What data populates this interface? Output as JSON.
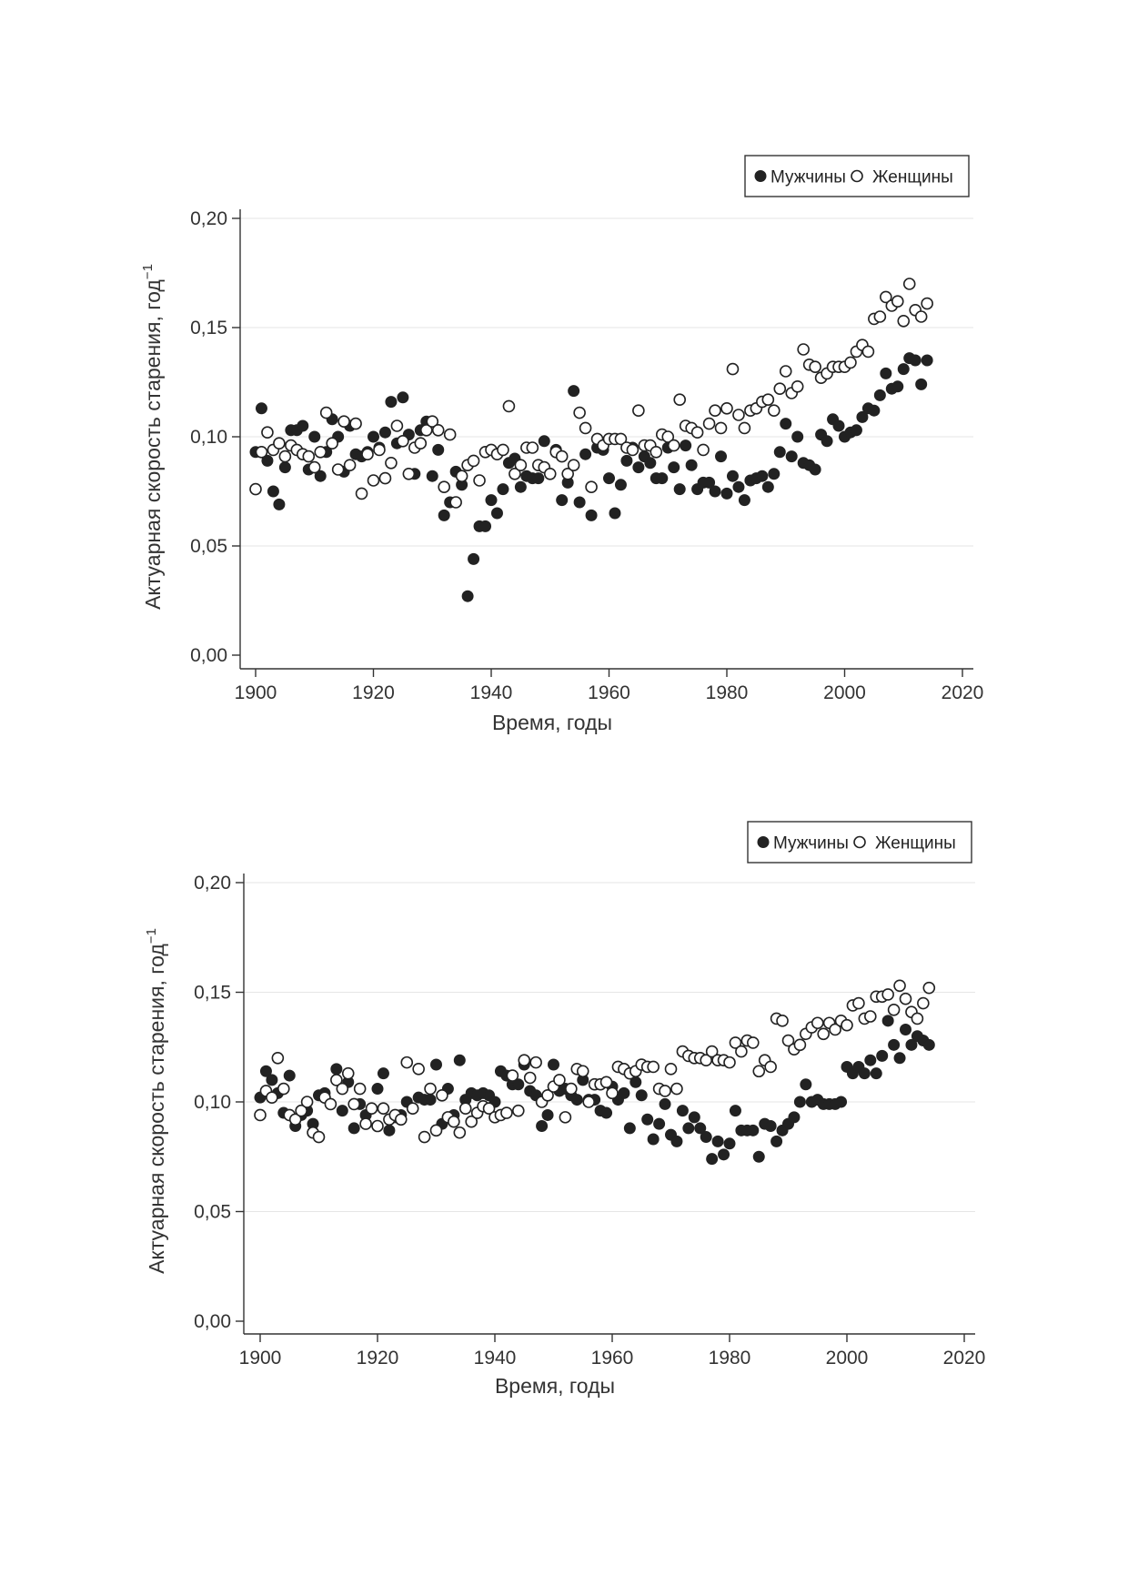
{
  "chart_data": [
    {
      "type": "scatter",
      "title": "",
      "xlabel": "Время, годы",
      "ylabel": "Актуарная скорость старения, год",
      "ylabel_superscript": "−1",
      "xlim": [
        1900,
        2020
      ],
      "ylim": [
        0.0,
        0.2
      ],
      "x_ticks": [
        1900,
        1920,
        1940,
        1960,
        1980,
        2000,
        2020
      ],
      "y_ticks": [
        0.0,
        0.05,
        0.1,
        0.15,
        0.2
      ],
      "y_tick_labels": [
        "0,00",
        "0,05",
        "0,10",
        "0,15",
        "0,20"
      ],
      "grid": "horizontal",
      "legend_position": "top-right",
      "series": [
        {
          "name": "Мужчины",
          "marker": "filled-circle",
          "color": "#222222",
          "x": [
            1900,
            1901,
            1902,
            1903,
            1904,
            1905,
            1906,
            1907,
            1908,
            1909,
            1910,
            1911,
            1912,
            1913,
            1914,
            1915,
            1916,
            1917,
            1918,
            1919,
            1920,
            1921,
            1922,
            1923,
            1924,
            1925,
            1926,
            1927,
            1928,
            1929,
            1930,
            1931,
            1932,
            1933,
            1934,
            1935,
            1936,
            1937,
            1938,
            1939,
            1940,
            1941,
            1942,
            1943,
            1944,
            1945,
            1946,
            1947,
            1948,
            1949,
            1950,
            1951,
            1952,
            1953,
            1954,
            1955,
            1956,
            1957,
            1958,
            1959,
            1960,
            1961,
            1962,
            1963,
            1964,
            1965,
            1966,
            1967,
            1968,
            1969,
            1970,
            1971,
            1972,
            1973,
            1974,
            1975,
            1976,
            1977,
            1978,
            1979,
            1980,
            1981,
            1982,
            1983,
            1984,
            1985,
            1986,
            1987,
            1988,
            1989,
            1990,
            1991,
            1992,
            1993,
            1994,
            1995,
            1996,
            1997,
            1998,
            1999,
            2000,
            2001,
            2002,
            2003,
            2004,
            2005,
            2006,
            2007,
            2008,
            2009,
            2010,
            2011,
            2012,
            2013,
            2014
          ],
          "y": [
            0.093,
            0.113,
            0.089,
            0.075,
            0.069,
            0.086,
            0.103,
            0.103,
            0.105,
            0.085,
            0.1,
            0.082,
            0.093,
            0.108,
            0.1,
            0.084,
            0.105,
            0.092,
            0.091,
            0.093,
            0.1,
            0.095,
            0.102,
            0.116,
            0.097,
            0.118,
            0.101,
            0.083,
            0.103,
            0.107,
            0.082,
            0.094,
            0.064,
            0.07,
            0.084,
            0.078,
            0.027,
            0.044,
            0.059,
            0.059,
            0.071,
            0.065,
            0.076,
            0.088,
            0.09,
            0.077,
            0.082,
            0.081,
            0.081,
            0.098,
            0.083,
            0.094,
            0.071,
            0.079,
            0.121,
            0.07,
            0.092,
            0.064,
            0.095,
            0.094,
            0.081,
            0.065,
            0.078,
            0.089,
            0.095,
            0.086,
            0.091,
            0.088,
            0.081,
            0.081,
            0.095,
            0.086,
            0.076,
            0.096,
            0.087,
            0.076,
            0.079,
            0.079,
            0.075,
            0.091,
            0.074,
            0.082,
            0.077,
            0.071,
            0.08,
            0.081,
            0.082,
            0.077,
            0.083,
            0.093,
            0.106,
            0.091,
            0.1,
            0.088,
            0.087,
            0.085,
            0.101,
            0.098,
            0.108,
            0.105,
            0.1,
            0.102,
            0.103,
            0.109,
            0.113,
            0.112,
            0.119,
            0.129,
            0.122,
            0.123,
            0.131,
            0.136,
            0.135,
            0.124,
            0.135
          ]
        },
        {
          "name": "Женщины",
          "marker": "open-circle",
          "color": "#222222",
          "x": [
            1900,
            1901,
            1902,
            1903,
            1904,
            1905,
            1906,
            1907,
            1908,
            1909,
            1910,
            1911,
            1912,
            1913,
            1914,
            1915,
            1916,
            1917,
            1918,
            1919,
            1920,
            1921,
            1922,
            1923,
            1924,
            1925,
            1926,
            1927,
            1928,
            1929,
            1930,
            1931,
            1932,
            1933,
            1934,
            1935,
            1936,
            1937,
            1938,
            1939,
            1940,
            1941,
            1942,
            1943,
            1944,
            1945,
            1946,
            1947,
            1948,
            1949,
            1950,
            1951,
            1952,
            1953,
            1954,
            1955,
            1956,
            1957,
            1958,
            1959,
            1960,
            1961,
            1962,
            1963,
            1964,
            1965,
            1966,
            1967,
            1968,
            1969,
            1970,
            1971,
            1972,
            1973,
            1974,
            1975,
            1976,
            1977,
            1978,
            1979,
            1980,
            1981,
            1982,
            1983,
            1984,
            1985,
            1986,
            1987,
            1988,
            1989,
            1990,
            1991,
            1992,
            1993,
            1994,
            1995,
            1996,
            1997,
            1998,
            1999,
            2000,
            2001,
            2002,
            2003,
            2004,
            2005,
            2006,
            2007,
            2008,
            2009,
            2010,
            2011,
            2012,
            2013,
            2014
          ],
          "y": [
            0.076,
            0.093,
            0.102,
            0.094,
            0.097,
            0.091,
            0.096,
            0.094,
            0.092,
            0.091,
            0.086,
            0.093,
            0.111,
            0.097,
            0.085,
            0.107,
            0.087,
            0.106,
            0.074,
            0.092,
            0.08,
            0.094,
            0.081,
            0.088,
            0.105,
            0.098,
            0.083,
            0.095,
            0.097,
            0.103,
            0.107,
            0.103,
            0.077,
            0.101,
            0.07,
            0.082,
            0.087,
            0.089,
            0.08,
            0.093,
            0.094,
            0.092,
            0.094,
            0.114,
            0.083,
            0.087,
            0.095,
            0.095,
            0.087,
            0.086,
            0.083,
            0.093,
            0.091,
            0.083,
            0.087,
            0.111,
            0.104,
            0.077,
            0.099,
            0.096,
            0.099,
            0.099,
            0.099,
            0.095,
            0.094,
            0.112,
            0.096,
            0.096,
            0.093,
            0.101,
            0.1,
            0.096,
            0.117,
            0.105,
            0.104,
            0.102,
            0.094,
            0.106,
            0.112,
            0.104,
            0.113,
            0.131,
            0.11,
            0.104,
            0.112,
            0.113,
            0.116,
            0.117,
            0.112,
            0.122,
            0.13,
            0.12,
            0.123,
            0.14,
            0.133,
            0.132,
            0.127,
            0.129,
            0.132,
            0.132,
            0.132,
            0.134,
            0.139,
            0.142,
            0.139,
            0.154,
            0.155,
            0.164,
            0.16,
            0.162,
            0.153,
            0.17,
            0.158,
            0.155,
            0.161
          ]
        }
      ]
    },
    {
      "type": "scatter",
      "title": "",
      "xlabel": "Время, годы",
      "ylabel": "Актуарная скорость старения, год",
      "ylabel_superscript": "−1",
      "xlim": [
        1900,
        2020
      ],
      "ylim": [
        0.0,
        0.2
      ],
      "x_ticks": [
        1900,
        1920,
        1940,
        1960,
        1980,
        2000,
        2020
      ],
      "y_ticks": [
        0.0,
        0.05,
        0.1,
        0.15,
        0.2
      ],
      "y_tick_labels": [
        "0,00",
        "0,05",
        "0,10",
        "0,15",
        "0,20"
      ],
      "grid": "horizontal",
      "legend_position": "top-right",
      "series": [
        {
          "name": "Мужчины",
          "marker": "filled-circle",
          "color": "#222222",
          "x": [
            1900,
            1901,
            1902,
            1903,
            1904,
            1905,
            1906,
            1907,
            1908,
            1909,
            1910,
            1911,
            1912,
            1913,
            1914,
            1915,
            1916,
            1917,
            1918,
            1919,
            1920,
            1921,
            1922,
            1923,
            1924,
            1925,
            1926,
            1927,
            1928,
            1929,
            1930,
            1931,
            1932,
            1933,
            1934,
            1935,
            1936,
            1937,
            1938,
            1939,
            1940,
            1941,
            1942,
            1943,
            1944,
            1945,
            1946,
            1947,
            1948,
            1949,
            1950,
            1951,
            1952,
            1953,
            1954,
            1955,
            1956,
            1957,
            1958,
            1959,
            1960,
            1961,
            1962,
            1963,
            1964,
            1965,
            1966,
            1967,
            1968,
            1969,
            1970,
            1971,
            1972,
            1973,
            1974,
            1975,
            1976,
            1977,
            1978,
            1979,
            1980,
            1981,
            1982,
            1983,
            1984,
            1985,
            1986,
            1987,
            1988,
            1989,
            1990,
            1991,
            1992,
            1993,
            1994,
            1995,
            1996,
            1997,
            1998,
            1999,
            2000,
            2001,
            2002,
            2003,
            2004,
            2005,
            2006,
            2007,
            2008,
            2009,
            2010,
            2011,
            2012,
            2013,
            2014
          ],
          "y": [
            0.102,
            0.114,
            0.11,
            0.104,
            0.095,
            0.112,
            0.089,
            0.094,
            0.096,
            0.09,
            0.103,
            0.104,
            0.099,
            0.115,
            0.096,
            0.109,
            0.088,
            0.099,
            0.094,
            0.097,
            0.106,
            0.113,
            0.087,
            0.093,
            0.094,
            0.1,
            0.097,
            0.102,
            0.101,
            0.101,
            0.117,
            0.09,
            0.106,
            0.094,
            0.119,
            0.101,
            0.104,
            0.103,
            0.104,
            0.103,
            0.1,
            0.114,
            0.112,
            0.108,
            0.108,
            0.117,
            0.105,
            0.103,
            0.089,
            0.094,
            0.117,
            0.105,
            0.106,
            0.103,
            0.101,
            0.11,
            0.101,
            0.101,
            0.096,
            0.095,
            0.107,
            0.101,
            0.104,
            0.088,
            0.109,
            0.103,
            0.092,
            0.083,
            0.09,
            0.099,
            0.085,
            0.082,
            0.096,
            0.088,
            0.093,
            0.088,
            0.084,
            0.074,
            0.082,
            0.076,
            0.081,
            0.096,
            0.087,
            0.087,
            0.087,
            0.075,
            0.09,
            0.089,
            0.082,
            0.087,
            0.09,
            0.093,
            0.1,
            0.108,
            0.1,
            0.101,
            0.099,
            0.099,
            0.099,
            0.1,
            0.116,
            0.113,
            0.116,
            0.113,
            0.119,
            0.113,
            0.121,
            0.137,
            0.126,
            0.12,
            0.133,
            0.126,
            0.13,
            0.128,
            0.126
          ]
        },
        {
          "name": "Женщины",
          "marker": "open-circle",
          "color": "#222222",
          "x": [
            1900,
            1901,
            1902,
            1903,
            1904,
            1905,
            1906,
            1907,
            1908,
            1909,
            1910,
            1911,
            1912,
            1913,
            1914,
            1915,
            1916,
            1917,
            1918,
            1919,
            1920,
            1921,
            1922,
            1923,
            1924,
            1925,
            1926,
            1927,
            1928,
            1929,
            1930,
            1931,
            1932,
            1933,
            1934,
            1935,
            1936,
            1937,
            1938,
            1939,
            1940,
            1941,
            1942,
            1943,
            1944,
            1945,
            1946,
            1947,
            1948,
            1949,
            1950,
            1951,
            1952,
            1953,
            1954,
            1955,
            1956,
            1957,
            1958,
            1959,
            1960,
            1961,
            1962,
            1963,
            1964,
            1965,
            1966,
            1967,
            1968,
            1969,
            1970,
            1971,
            1972,
            1973,
            1974,
            1975,
            1976,
            1977,
            1978,
            1979,
            1980,
            1981,
            1982,
            1983,
            1984,
            1985,
            1986,
            1987,
            1988,
            1989,
            1990,
            1991,
            1992,
            1993,
            1994,
            1995,
            1996,
            1997,
            1998,
            1999,
            2000,
            2001,
            2002,
            2003,
            2004,
            2005,
            2006,
            2007,
            2008,
            2009,
            2010,
            2011,
            2012,
            2013,
            2014
          ],
          "y": [
            0.094,
            0.105,
            0.102,
            0.12,
            0.106,
            0.094,
            0.092,
            0.096,
            0.1,
            0.086,
            0.084,
            0.102,
            0.099,
            0.11,
            0.106,
            0.113,
            0.099,
            0.106,
            0.09,
            0.097,
            0.089,
            0.097,
            0.092,
            0.094,
            0.092,
            0.118,
            0.097,
            0.115,
            0.084,
            0.106,
            0.087,
            0.103,
            0.093,
            0.091,
            0.086,
            0.097,
            0.091,
            0.095,
            0.098,
            0.097,
            0.093,
            0.094,
            0.095,
            0.112,
            0.096,
            0.119,
            0.111,
            0.118,
            0.1,
            0.103,
            0.107,
            0.11,
            0.093,
            0.106,
            0.115,
            0.114,
            0.1,
            0.108,
            0.108,
            0.109,
            0.104,
            0.116,
            0.115,
            0.113,
            0.114,
            0.117,
            0.116,
            0.116,
            0.106,
            0.105,
            0.115,
            0.106,
            0.123,
            0.121,
            0.12,
            0.12,
            0.119,
            0.123,
            0.119,
            0.119,
            0.118,
            0.127,
            0.123,
            0.128,
            0.127,
            0.114,
            0.119,
            0.116,
            0.138,
            0.137,
            0.128,
            0.124,
            0.126,
            0.131,
            0.134,
            0.136,
            0.131,
            0.136,
            0.133,
            0.137,
            0.135,
            0.144,
            0.145,
            0.138,
            0.139,
            0.148,
            0.148,
            0.149,
            0.142,
            0.153,
            0.147,
            0.141,
            0.138,
            0.145,
            0.152
          ]
        }
      ]
    }
  ]
}
